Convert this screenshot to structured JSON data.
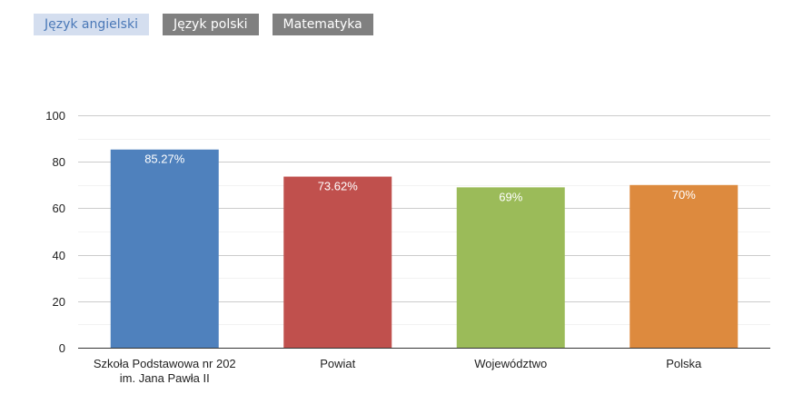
{
  "tabs": [
    {
      "label": "Język angielski",
      "active": true
    },
    {
      "label": "Język polski",
      "active": false
    },
    {
      "label": "Matematyka",
      "active": false
    }
  ],
  "chart_data": {
    "type": "bar",
    "categories": [
      [
        "Szkoła Podstawowa nr 202",
        "im. Jana Pawła II"
      ],
      [
        "Powiat"
      ],
      [
        "Województwo"
      ],
      [
        "Polska"
      ]
    ],
    "values": [
      85.27,
      73.62,
      69,
      70
    ],
    "data_labels": [
      "85.27%",
      "73.62%",
      "69%",
      "70%"
    ],
    "colors": [
      "#4f81bd",
      "#c0504d",
      "#9bbb59",
      "#dd8a3e"
    ],
    "ylim": [
      0,
      100
    ],
    "yticks": [
      0,
      20,
      40,
      60,
      80,
      100
    ],
    "title": "",
    "xlabel": "",
    "ylabel": "",
    "grid": true,
    "legend": "none"
  }
}
